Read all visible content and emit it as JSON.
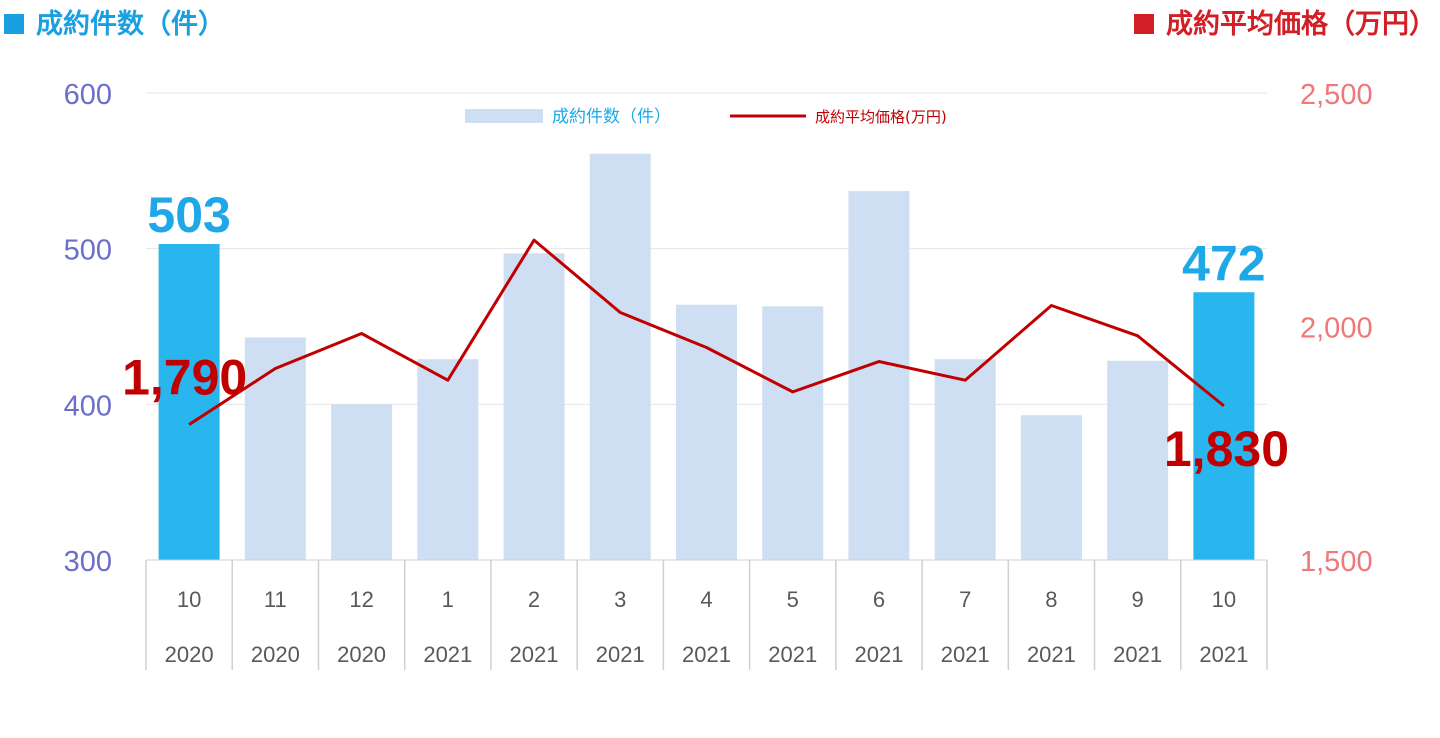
{
  "header": {
    "left_title": "成約件数（件）",
    "right_title": "成約平均価格（万円）"
  },
  "chart_data": {
    "type": "bar",
    "categories": [
      {
        "month": "10",
        "year": "2020"
      },
      {
        "month": "11",
        "year": "2020"
      },
      {
        "month": "12",
        "year": "2020"
      },
      {
        "month": "1",
        "year": "2021"
      },
      {
        "month": "2",
        "year": "2021"
      },
      {
        "month": "3",
        "year": "2021"
      },
      {
        "month": "4",
        "year": "2021"
      },
      {
        "month": "5",
        "year": "2021"
      },
      {
        "month": "6",
        "year": "2021"
      },
      {
        "month": "7",
        "year": "2021"
      },
      {
        "month": "8",
        "year": "2021"
      },
      {
        "month": "9",
        "year": "2021"
      },
      {
        "month": "10",
        "year": "2021"
      }
    ],
    "series": [
      {
        "name": "成約件数（件）",
        "type": "bar",
        "axis": "left",
        "values": [
          503,
          443,
          400,
          429,
          497,
          561,
          464,
          463,
          537,
          429,
          393,
          428,
          472
        ],
        "highlighted_indices": [
          0,
          12
        ]
      },
      {
        "name": "成約平均価格(万円)",
        "type": "line",
        "axis": "right",
        "values": [
          1790,
          1910,
          1985,
          1885,
          2185,
          2030,
          1955,
          1860,
          1925,
          1885,
          2045,
          1980,
          1830
        ]
      }
    ],
    "y_left": {
      "min": 300,
      "max": 600,
      "ticks": [
        "300",
        "400",
        "500",
        "600"
      ]
    },
    "y_right": {
      "min": 1500,
      "max": 2500,
      "ticks": [
        "1,500",
        "2,000",
        "2,500"
      ]
    },
    "data_labels": [
      {
        "series": 0,
        "index": 0,
        "text": "503"
      },
      {
        "series": 0,
        "index": 12,
        "text": "472"
      },
      {
        "series": 1,
        "index": 0,
        "text": "1,790"
      },
      {
        "series": 1,
        "index": 12,
        "text": "1,830"
      }
    ],
    "legend_position": "top-center",
    "grid": true,
    "colors": {
      "bar": "#cfdff3",
      "bar_highlight": "#29b6ee",
      "line": "#c00000",
      "left_axis_text": "#6b6fc8",
      "right_axis_text": "#f0777a",
      "bar_label": "#1ea8e8",
      "line_label": "#c00000",
      "grid": "#e4e4e4",
      "category_text": "#595959",
      "category_border": "#d0d0d0"
    }
  }
}
